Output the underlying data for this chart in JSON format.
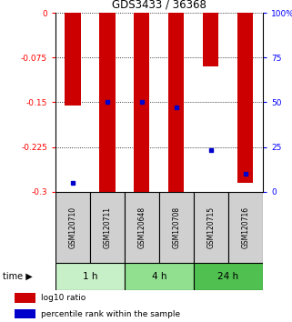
{
  "title": "GDS3433 / 36368",
  "samples": [
    "GSM120710",
    "GSM120711",
    "GSM120648",
    "GSM120708",
    "GSM120715",
    "GSM120716"
  ],
  "time_groups": [
    {
      "label": "1 h",
      "samples": [
        "GSM120710",
        "GSM120711"
      ],
      "color": "#c8f0c8"
    },
    {
      "label": "4 h",
      "samples": [
        "GSM120648",
        "GSM120708"
      ],
      "color": "#90e090"
    },
    {
      "label": "24 h",
      "samples": [
        "GSM120715",
        "GSM120716"
      ],
      "color": "#50c050"
    }
  ],
  "log10_ratio": [
    -0.155,
    -0.3,
    -0.3,
    -0.3,
    -0.09,
    -0.285
  ],
  "percentile_rank": [
    5,
    50,
    50,
    47,
    23,
    10
  ],
  "ylim_left": [
    -0.3,
    0
  ],
  "ylim_right": [
    0,
    100
  ],
  "yticks_left": [
    0,
    -0.075,
    -0.15,
    -0.225,
    -0.3
  ],
  "yticks_right": [
    100,
    75,
    50,
    25,
    0
  ],
  "bar_color": "#cc0000",
  "marker_color": "#0000cc",
  "bg_color": "#ffffff",
  "sample_box_color": "#d0d0d0",
  "legend_items": [
    {
      "color": "#cc0000",
      "label": "log10 ratio"
    },
    {
      "color": "#0000cc",
      "label": "percentile rank within the sample"
    }
  ]
}
